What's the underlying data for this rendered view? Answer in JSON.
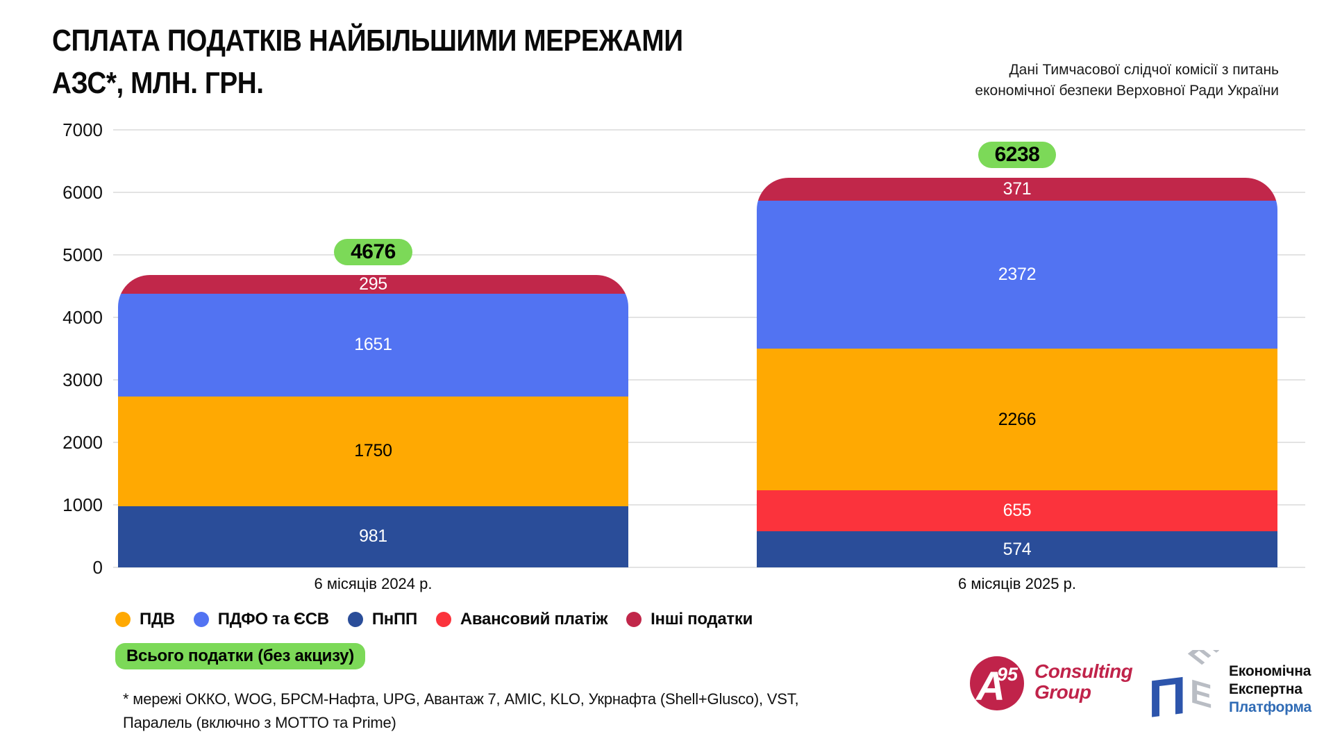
{
  "header": {
    "title_line1": "СПЛАТА ПОДАТКІВ НАЙБІЛЬШИМИ МЕРЕЖАМИ",
    "title_line2": "АЗС*, МЛН. ГРН.",
    "source_line1": "Дані Тимчасової слідчої комісії з питань",
    "source_line2": "економічної безпеки Верховної Ради України"
  },
  "chart_data": {
    "type": "bar",
    "stacked": true,
    "title": "СПЛАТА ПОДАТКІВ НАЙБІЛЬШИМИ МЕРЕЖАМИ АЗС*, МЛН. ГРН.",
    "xlabel": "",
    "ylabel": "млн. грн.",
    "categories": [
      "6 місяців 2024 р.",
      "6 місяців 2025 р."
    ],
    "category_slugs": [
      "2024",
      "2025"
    ],
    "series": [
      {
        "name": "ПнПП",
        "slug": "pnpp",
        "color": "#2A4D99",
        "label_color": "#FFFFFF",
        "values": [
          981,
          574
        ]
      },
      {
        "name": "Авансовий платіж",
        "slug": "advance-payment",
        "color": "#FB333C",
        "label_color": "#FFFFFF",
        "values": [
          0,
          655
        ]
      },
      {
        "name": "ПДВ",
        "slug": "pdv",
        "color": "#FFA902",
        "label_color": "#000000",
        "values": [
          1750,
          2266
        ]
      },
      {
        "name": "ПДФО та ЄСВ",
        "slug": "pdfo-esv",
        "color": "#5273F2",
        "label_color": "#FFFFFF",
        "values": [
          1651,
          2372
        ]
      },
      {
        "name": "Інші податки",
        "slug": "other-taxes",
        "color": "#C1274A",
        "label_color": "#FFFFFF",
        "values": [
          295,
          371
        ]
      }
    ],
    "totals": [
      4676,
      6238
    ],
    "totals_badge_color": "#7CD958",
    "ylim": [
      0,
      7000
    ],
    "yticks": [
      0,
      1000,
      2000,
      3000,
      4000,
      5000,
      6000,
      7000
    ],
    "grid": "horizontal",
    "legend_position": "bottom"
  },
  "legend_items": [
    {
      "label": "ПДВ",
      "slug": "pdv",
      "color": "#FFA902"
    },
    {
      "label": "ПДФО та ЄСВ",
      "slug": "pdfo-esv",
      "color": "#5273F2"
    },
    {
      "label": "ПнПП",
      "slug": "pnpp",
      "color": "#2A4D99"
    },
    {
      "label": "Авансовий платіж",
      "slug": "advance-payment",
      "color": "#FB333C"
    },
    {
      "label": "Інші податки",
      "slug": "other-taxes",
      "color": "#C1274A"
    }
  ],
  "footer": {
    "total_badge_label": "Всього податки (без акцизу)",
    "total_badge_color": "#7CD958",
    "footnote_line1": "* мережі ОККО, WOG, БРСМ-Нафта, UPG, Авантаж 7, AMIC, KLO, Укрнафта (Shell+Glusco), VST,",
    "footnote_line2": "Паралель (включно з МОТТО та Prime)"
  },
  "logos": {
    "a95": {
      "letter": "А",
      "sup": "95",
      "line1": "Consulting",
      "line2": "Group",
      "color": "#C0234A"
    },
    "eep": {
      "line1": "Економічна",
      "line2": "Експертна",
      "line3": "Платформа",
      "accent": "#2F6BB5"
    }
  }
}
